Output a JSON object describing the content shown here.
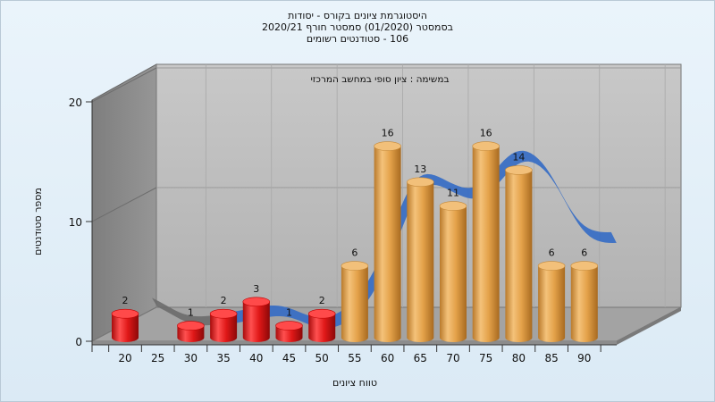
{
  "chart_data": {
    "type": "bar",
    "title_lines": [
      "היסטוגרמת ציונים בקורס - יסודות",
      "בסמסטר  (01/2020)  סמסטר חורף  2020/21",
      "106 - סטודנטים רשומים"
    ],
    "annotation": "במשימה : ציון סופי במחשב המרכזי",
    "xlabel": "טווח ציונים",
    "ylabel": "מספר סטודנטים",
    "ylim": [
      0,
      20
    ],
    "yticks": [
      0,
      10,
      20
    ],
    "categories": [
      "20",
      "25",
      "30",
      "35",
      "40",
      "45",
      "50",
      "55",
      "60",
      "65",
      "70",
      "75",
      "80",
      "85",
      "90"
    ],
    "values": [
      2,
      0,
      1,
      2,
      3,
      1,
      2,
      6,
      16,
      13,
      11,
      16,
      14,
      6,
      6
    ],
    "labels": [
      "2",
      "",
      "1",
      "2",
      "3",
      "1",
      "2",
      "6",
      "16",
      "13",
      "11",
      "16",
      "14",
      "6",
      "6"
    ],
    "fail_threshold": 55,
    "colors": {
      "fail": "#e01818",
      "pass": "#e0a44c",
      "curve": "#3a6fc4",
      "curve_back": "#6b6b6b",
      "wall": "#b8b8b8",
      "side_wall": "#8a8a8a",
      "floor": "#9a9a9a"
    },
    "grid": true,
    "legend": "none"
  }
}
